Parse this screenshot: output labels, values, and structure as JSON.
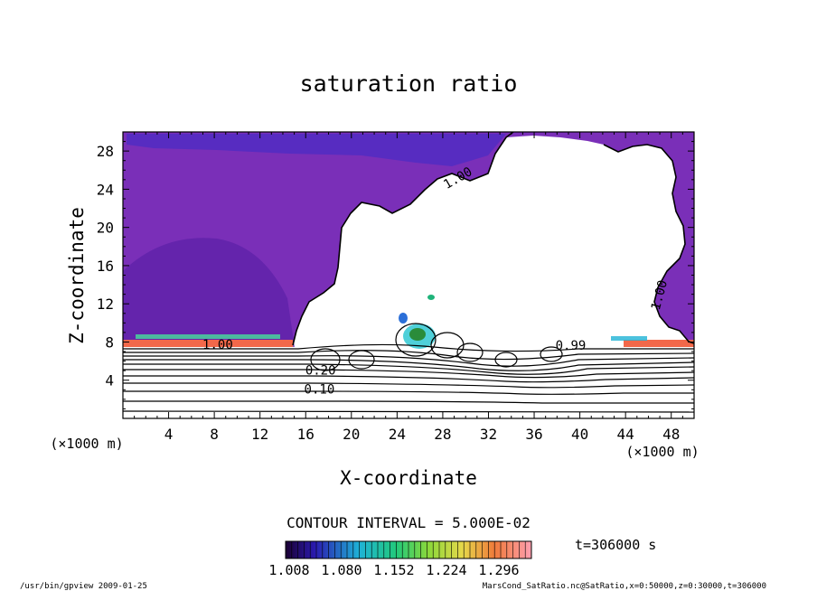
{
  "chart_data": {
    "type": "contour",
    "title": "saturation ratio",
    "xlabel": "X-coordinate",
    "ylabel": "Z-coordinate",
    "x_unit": "(×1000 m)",
    "y_unit": "(×1000 m)",
    "xlim": [
      0,
      50
    ],
    "ylim": [
      0,
      30
    ],
    "x_ticks": [
      4,
      8,
      12,
      16,
      20,
      24,
      28,
      32,
      36,
      40,
      44,
      48
    ],
    "y_ticks": [
      4,
      8,
      12,
      16,
      20,
      24,
      28
    ],
    "contour_interval_text": "CONTOUR INTERVAL = 5.000E-02",
    "contour_labels": [
      {
        "text": "1.00",
        "x": 29.5,
        "y": 24.8
      },
      {
        "text": "1.00",
        "x": 47.3,
        "y": 12.8
      },
      {
        "text": "1.00",
        "x": 8.3,
        "y": 7.3
      },
      {
        "text": "0.99",
        "x": 39.2,
        "y": 7.2
      },
      {
        "text": "0.20",
        "x": 17.3,
        "y": 4.6
      },
      {
        "text": "0.10",
        "x": 17.2,
        "y": 2.6
      }
    ],
    "colorbar": {
      "tick_labels": [
        "1.008",
        "1.080",
        "1.152",
        "1.224",
        "1.296"
      ],
      "min": 1.008,
      "max": 1.296
    },
    "time_label": "t=306000 s"
  },
  "footer": {
    "left": "/usr/bin/gpview  2009-01-25",
    "right": "MarsCond_SatRatio.nc@SatRatio,x=0:50000,z=0:30000,t=306000"
  },
  "colors": {
    "purple_fill": "#7a2fb8",
    "deep_purple": "#5d22a8",
    "white_region": "#ffffff"
  }
}
